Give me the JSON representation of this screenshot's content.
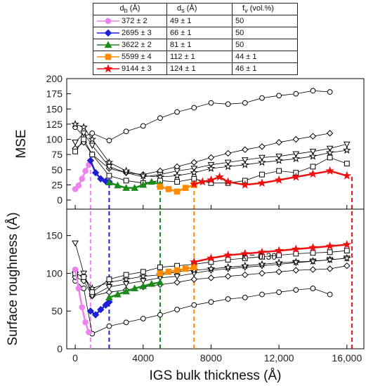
{
  "chart_data": {
    "type": "scatter",
    "xlabel": "IGS bulk thickness (Å)",
    "xlim": [
      -500,
      17000
    ],
    "x_ticks": [
      0,
      4000,
      8000,
      12000,
      16000
    ],
    "x_tick_labels": [
      "0",
      "4000",
      "8000",
      "12,000",
      "16,000"
    ],
    "annotation": "x = 0.30",
    "legend_table": {
      "headers": [
        "d_b (Å)",
        "d_s (Å)",
        "f_v (vol.%)"
      ],
      "rows": [
        {
          "db": "372 ± 2",
          "ds": "49 ± 1",
          "fv": "50",
          "color": "#ee82ee",
          "marker": "circle"
        },
        {
          "db": "2695 ± 3",
          "ds": "66 ± 1",
          "fv": "50",
          "color": "#1f1fd6",
          "marker": "diamond"
        },
        {
          "db": "3622 ± 2",
          "ds": "81 ± 1",
          "fv": "50",
          "color": "#1a8a1a",
          "marker": "triangle"
        },
        {
          "db": "5599 ± 4",
          "ds": "112 ± 1",
          "fv": "44 ± 1",
          "color": "#ff8c00",
          "marker": "square"
        },
        {
          "db": "9144 ± 3",
          "ds": "124 ± 1",
          "fv": "46 ± 1",
          "color": "#ee1111",
          "marker": "star"
        }
      ]
    },
    "panels": [
      {
        "ylabel": "MSE",
        "ylim": [
          -15,
          200
        ],
        "y_ticks": [
          0,
          25,
          50,
          75,
          100,
          125,
          150,
          175,
          200
        ],
        "colored_series": [
          {
            "color": "#ee82ee",
            "marker": "circle",
            "x": [
              0,
              200,
              400,
              600,
              800
            ],
            "y": [
              18,
              24,
              35,
              48,
              58
            ]
          },
          {
            "color": "#1f1fd6",
            "marker": "diamond",
            "x": [
              900,
              1200,
              1500,
              1800,
              2000
            ],
            "y": [
              65,
              45,
              35,
              31,
              30
            ]
          },
          {
            "color": "#1a8a1a",
            "marker": "triangle",
            "x": [
              2000,
              2500,
              3000,
              3500,
              4000,
              4500,
              5000
            ],
            "y": [
              29,
              24,
              20,
              20,
              25,
              30,
              26
            ]
          },
          {
            "color": "#ff8c00",
            "marker": "square",
            "x": [
              5000,
              5500,
              6000,
              6500,
              7000
            ],
            "y": [
              22,
              18,
              14,
              20,
              25
            ]
          },
          {
            "color": "#ee1111",
            "marker": "star",
            "x": [
              7000,
              7500,
              8000,
              8500,
              9000,
              10000,
              11000,
              12000,
              13000,
              14000,
              15000,
              16000
            ],
            "y": [
              26,
              30,
              33,
              38,
              30,
              25,
              28,
              33,
              38,
              43,
              48,
              40
            ]
          }
        ],
        "open_series": [
          {
            "marker": "circle",
            "x": [
              0,
              500,
              1000,
              2000,
              3000,
              4000,
              5000,
              6000,
              7000,
              8000,
              9000,
              10000,
              11000,
              12000,
              13000,
              14000,
              15000
            ],
            "y": [
              120,
              105,
              110,
              98,
              113,
              122,
              135,
              145,
              152,
              160,
              158,
              160,
              168,
              172,
              175,
              180,
              178
            ]
          },
          {
            "marker": "diamond",
            "x": [
              0,
              500,
              1000,
              2000,
              3000,
              4000,
              5000,
              6000,
              7000,
              8000,
              9000,
              10000,
              11000,
              12000,
              13000,
              14000,
              15000
            ],
            "y": [
              85,
              95,
              75,
              52,
              45,
              42,
              48,
              55,
              62,
              70,
              77,
              83,
              88,
              95,
              100,
              105,
              110
            ]
          },
          {
            "marker": "triangle-down",
            "x": [
              0,
              500,
              1000,
              2000,
              3000,
              4000,
              5000,
              6000,
              7000,
              8000,
              9000,
              10000,
              11000,
              12000,
              13000,
              14000,
              15000,
              16000
            ],
            "y": [
              95,
              110,
              90,
              55,
              45,
              38,
              42,
              48,
              52,
              58,
              62,
              66,
              70,
              72,
              76,
              80,
              85,
              92
            ]
          },
          {
            "marker": "star-open",
            "x": [
              0,
              500,
              1000,
              2000,
              3000,
              4000,
              5000,
              6000,
              7000,
              8000,
              9000,
              10000,
              11000,
              12000,
              13000,
              14000,
              15000,
              16000
            ],
            "y": [
              125,
              120,
              100,
              62,
              48,
              40,
              38,
              40,
              45,
              52,
              55,
              58,
              62,
              65,
              68,
              72,
              78,
              82
            ]
          },
          {
            "marker": "square",
            "x": [
              0,
              500,
              1000,
              2000,
              3000,
              4000,
              5000,
              6000,
              7000,
              8000,
              9000,
              10000,
              11000,
              12000,
              13000,
              14000,
              15000,
              16000
            ],
            "y": [
              80,
              100,
              75,
              40,
              32,
              28,
              32,
              30,
              35,
              28,
              28,
              32,
              42,
              48,
              45,
              55,
              70,
              60
            ]
          }
        ],
        "dashed_lines": [
          {
            "x": 900,
            "y_top": 55,
            "color": "#ee82ee"
          },
          {
            "x": 2000,
            "y_top": 30,
            "color": "#1f1fd6"
          },
          {
            "x": 5000,
            "y_top": 22,
            "color": "#1a8a1a"
          },
          {
            "x": 7000,
            "y_top": 22,
            "color": "#ff8c00"
          },
          {
            "x": 16300,
            "y_top": 40,
            "color": "#ee1111"
          }
        ]
      },
      {
        "ylabel": "Surface roughness (Å)",
        "ylim": [
          0,
          185
        ],
        "y_ticks": [
          0,
          50,
          100,
          150
        ],
        "colored_series": [
          {
            "color": "#ee82ee",
            "marker": "circle",
            "x": [
              0,
              200,
              400,
              600,
              800
            ],
            "y": [
              105,
              80,
              55,
              35,
              22
            ]
          },
          {
            "color": "#1f1fd6",
            "marker": "diamond",
            "x": [
              900,
              1200,
              1500,
              1800,
              2000
            ],
            "y": [
              50,
              45,
              52,
              58,
              62
            ]
          },
          {
            "color": "#1a8a1a",
            "marker": "triangle",
            "x": [
              2000,
              2500,
              3000,
              3500,
              4000,
              4500,
              5000
            ],
            "y": [
              68,
              72,
              76,
              80,
              83,
              86,
              88
            ]
          },
          {
            "color": "#ff8c00",
            "marker": "square",
            "x": [
              5000,
              5500,
              6000,
              6500,
              7000
            ],
            "y": [
              100,
              102,
              104,
              106,
              108
            ]
          },
          {
            "color": "#ee1111",
            "marker": "star",
            "x": [
              7000,
              8000,
              9000,
              10000,
              11000,
              12000,
              13000,
              14000,
              15000,
              16000
            ],
            "y": [
              115,
              120,
              124,
              126,
              128,
              130,
              132,
              134,
              136,
              138
            ]
          }
        ],
        "open_series": [
          {
            "marker": "circle",
            "x": [
              0,
              500,
              1000,
              2000,
              3000,
              4000,
              5000,
              6000,
              7000,
              8000,
              9000,
              10000,
              11000,
              12000,
              13000,
              14000,
              15000
            ],
            "y": [
              90,
              80,
              20,
              30,
              35,
              40,
              45,
              52,
              58,
              62,
              66,
              68,
              72,
              75,
              78,
              80,
              72
            ]
          },
          {
            "marker": "diamond",
            "x": [
              0,
              500,
              1000,
              2000,
              3000,
              4000,
              5000,
              6000,
              7000,
              8000,
              9000,
              10000,
              11000,
              12000,
              13000,
              14000,
              15000,
              16000
            ],
            "y": [
              95,
              90,
              70,
              75,
              78,
              82,
              85,
              88,
              92,
              94,
              96,
              98,
              100,
              102,
              104,
              105,
              106,
              110
            ]
          },
          {
            "marker": "triangle-down",
            "x": [
              0,
              500,
              1000,
              2000,
              3000,
              4000,
              5000,
              6000,
              7000,
              8000,
              9000,
              10000,
              11000,
              12000,
              13000,
              14000,
              15000,
              16000
            ],
            "y": [
              140,
              100,
              70,
              82,
              86,
              90,
              94,
              96,
              100,
              104,
              106,
              108,
              110,
              112,
              114,
              116,
              118,
              120
            ]
          },
          {
            "marker": "star-open",
            "x": [
              0,
              500,
              1000,
              2000,
              3000,
              4000,
              5000,
              6000,
              7000,
              8000,
              9000,
              10000,
              11000,
              12000,
              13000,
              14000,
              15000,
              16000
            ],
            "y": [
              100,
              95,
              80,
              88,
              92,
              96,
              98,
              102,
              104,
              106,
              108,
              110,
              112,
              114,
              115,
              116,
              118,
              120
            ]
          },
          {
            "marker": "square",
            "x": [
              0,
              500,
              1000,
              2000,
              3000,
              4000,
              5000,
              6000,
              7000,
              8000,
              9000,
              10000,
              11000,
              12000,
              13000,
              14000,
              15000,
              16000
            ],
            "y": [
              100,
              95,
              75,
              92,
              98,
              102,
              108,
              110,
              112,
              115,
              118,
              120,
              122,
              124,
              126,
              127,
              128,
              130
            ]
          }
        ],
        "dashed_lines": [
          {
            "x": 900,
            "y_top": 185,
            "color": "#ee82ee"
          },
          {
            "x": 2000,
            "y_top": 185,
            "color": "#1f1fd6"
          },
          {
            "x": 5000,
            "y_top": 185,
            "color": "#1a8a1a"
          },
          {
            "x": 7000,
            "y_top": 185,
            "color": "#ff8c00"
          },
          {
            "x": 16300,
            "y_top": 185,
            "color": "#ee1111"
          }
        ]
      }
    ]
  }
}
